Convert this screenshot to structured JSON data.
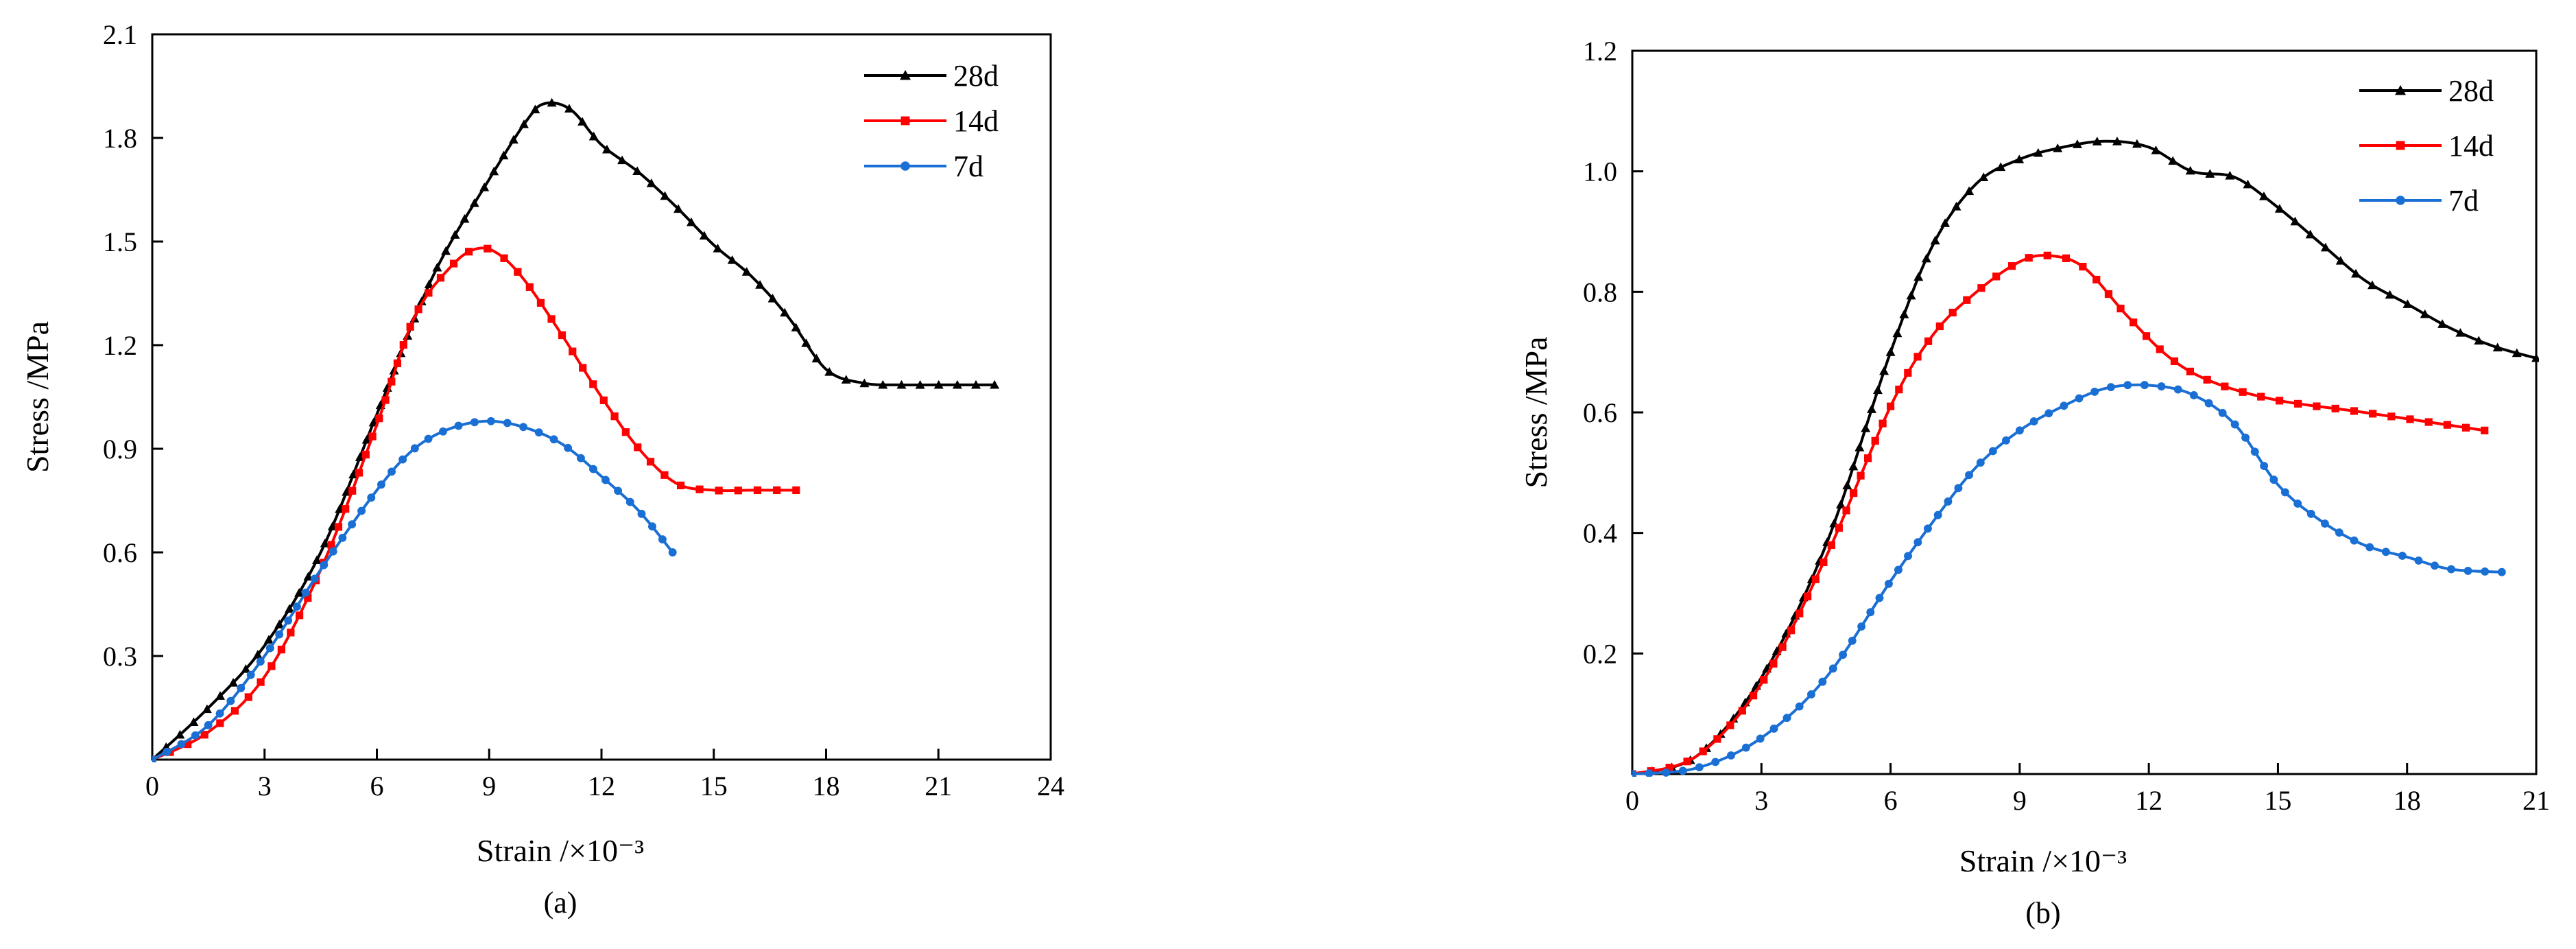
{
  "figure": {
    "panel_labels": [
      "(a)",
      "(b)"
    ]
  },
  "chart_data": [
    {
      "type": "line",
      "panel": "(a)",
      "title": "",
      "xlabel": "Strain /×10⁻³",
      "ylabel": "Stress /MPa",
      "xlim": [
        0,
        24
      ],
      "ylim": [
        0,
        2.1
      ],
      "xticks": [
        0,
        3,
        6,
        9,
        12,
        15,
        18,
        21,
        24
      ],
      "yticks": [
        0.3,
        0.6,
        0.9,
        1.2,
        1.5,
        1.8,
        2.1
      ],
      "xtick_labels": [
        "0",
        "3",
        "6",
        "9",
        "12",
        "15",
        "18",
        "21",
        "24"
      ],
      "ytick_labels": [
        "0.3",
        "0.6",
        "0.9",
        "1.2",
        "1.5",
        "1.8",
        "2.1"
      ],
      "legend_position": "top-right",
      "series": [
        {
          "name": "28d",
          "color": "#000000",
          "marker": "triangle",
          "points": [
            [
              0,
              0
            ],
            [
              1.5,
              0.15
            ],
            [
              3,
              0.33
            ],
            [
              4.5,
              0.6
            ],
            [
              6,
              1.0
            ],
            [
              7.5,
              1.4
            ],
            [
              9,
              1.68
            ],
            [
              10,
              1.85
            ],
            [
              10.5,
              1.9
            ],
            [
              11.2,
              1.88
            ],
            [
              12,
              1.78
            ],
            [
              13,
              1.7
            ],
            [
              14,
              1.6
            ],
            [
              15,
              1.49
            ],
            [
              16,
              1.4
            ],
            [
              17,
              1.28
            ],
            [
              18,
              1.13
            ],
            [
              19,
              1.09
            ],
            [
              20,
              1.085
            ],
            [
              21,
              1.085
            ],
            [
              22.5,
              1.085
            ]
          ]
        },
        {
          "name": "14d",
          "color": "#ff0000",
          "marker": "square",
          "points": [
            [
              0,
              0
            ],
            [
              1.5,
              0.08
            ],
            [
              3,
              0.24
            ],
            [
              4.5,
              0.55
            ],
            [
              6,
              0.97
            ],
            [
              7,
              1.28
            ],
            [
              8,
              1.43
            ],
            [
              8.7,
              1.48
            ],
            [
              9.3,
              1.46
            ],
            [
              10,
              1.38
            ],
            [
              11,
              1.22
            ],
            [
              12,
              1.05
            ],
            [
              13,
              0.9
            ],
            [
              14,
              0.8
            ],
            [
              15,
              0.78
            ],
            [
              16,
              0.78
            ],
            [
              17.2,
              0.78
            ]
          ]
        },
        {
          "name": "7d",
          "color": "#1a6fd4",
          "marker": "circle",
          "points": [
            [
              0,
              0
            ],
            [
              1.5,
              0.1
            ],
            [
              3,
              0.3
            ],
            [
              4.5,
              0.55
            ],
            [
              6,
              0.78
            ],
            [
              7,
              0.9
            ],
            [
              8,
              0.96
            ],
            [
              9,
              0.98
            ],
            [
              10,
              0.96
            ],
            [
              11,
              0.91
            ],
            [
              12,
              0.82
            ],
            [
              13,
              0.72
            ],
            [
              13.9,
              0.6
            ]
          ]
        }
      ]
    },
    {
      "type": "line",
      "panel": "(b)",
      "title": "",
      "xlabel": "Strain /×10⁻³",
      "ylabel": "Stress /MPa",
      "xlim": [
        0,
        21
      ],
      "ylim": [
        0,
        1.2
      ],
      "xticks": [
        0,
        3,
        6,
        9,
        12,
        15,
        18,
        21
      ],
      "yticks": [
        0.2,
        0.4,
        0.6,
        0.8,
        1.0,
        1.2
      ],
      "xtick_labels": [
        "0",
        "3",
        "6",
        "9",
        "12",
        "15",
        "18",
        "21"
      ],
      "ytick_labels": [
        "0.2",
        "0.4",
        "0.6",
        "0.8",
        "1.0",
        "1.2"
      ],
      "legend_position": "top-right",
      "series": [
        {
          "name": "28d",
          "color": "#000000",
          "marker": "triangle",
          "points": [
            [
              0,
              0
            ],
            [
              1.5,
              0.03
            ],
            [
              3,
              0.16
            ],
            [
              4.5,
              0.38
            ],
            [
              6,
              0.7
            ],
            [
              7,
              0.88
            ],
            [
              8,
              0.98
            ],
            [
              9,
              1.02
            ],
            [
              10,
              1.04
            ],
            [
              11,
              1.05
            ],
            [
              12,
              1.04
            ],
            [
              13,
              1.0
            ],
            [
              14,
              0.99
            ],
            [
              15,
              0.94
            ],
            [
              16,
              0.88
            ],
            [
              17,
              0.82
            ],
            [
              18,
              0.78
            ],
            [
              19,
              0.74
            ],
            [
              20,
              0.71
            ],
            [
              21,
              0.69
            ]
          ]
        },
        {
          "name": "14d",
          "color": "#ff0000",
          "marker": "square",
          "points": [
            [
              0,
              0
            ],
            [
              1.5,
              0.03
            ],
            [
              3,
              0.15
            ],
            [
              4.5,
              0.36
            ],
            [
              6,
              0.61
            ],
            [
              7,
              0.73
            ],
            [
              8,
              0.8
            ],
            [
              9,
              0.85
            ],
            [
              9.7,
              0.86
            ],
            [
              10.5,
              0.84
            ],
            [
              11.5,
              0.76
            ],
            [
              12.5,
              0.69
            ],
            [
              13.5,
              0.65
            ],
            [
              15,
              0.62
            ],
            [
              17,
              0.6
            ],
            [
              19.8,
              0.57
            ]
          ]
        },
        {
          "name": "7d",
          "color": "#1a6fd4",
          "marker": "circle",
          "points": [
            [
              0,
              0
            ],
            [
              1.5,
              0.01
            ],
            [
              3,
              0.06
            ],
            [
              4.5,
              0.16
            ],
            [
              6,
              0.32
            ],
            [
              7,
              0.42
            ],
            [
              8,
              0.51
            ],
            [
              9,
              0.57
            ],
            [
              10,
              0.61
            ],
            [
              11,
              0.64
            ],
            [
              12,
              0.645
            ],
            [
              13,
              0.63
            ],
            [
              14,
              0.58
            ],
            [
              15,
              0.48
            ],
            [
              16,
              0.42
            ],
            [
              17,
              0.38
            ],
            [
              18,
              0.36
            ],
            [
              19,
              0.34
            ],
            [
              20.2,
              0.335
            ]
          ]
        }
      ]
    }
  ]
}
